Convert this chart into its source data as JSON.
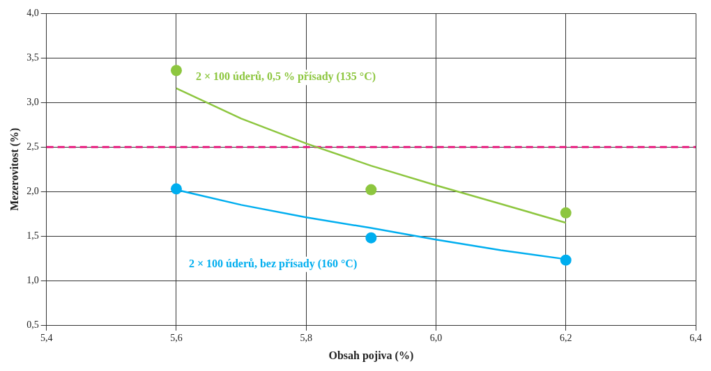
{
  "chart_data": {
    "type": "scatter",
    "xlabel": "Obsah pojiva (%)",
    "ylabel": "Mezerovitost (%)",
    "xlim": [
      5.4,
      6.4
    ],
    "xticks": [
      {
        "value": 5.4,
        "label": "5,4"
      },
      {
        "value": 5.6,
        "label": "5,6"
      },
      {
        "value": 5.8,
        "label": "5,8"
      },
      {
        "value": 6.0,
        "label": "6,0"
      },
      {
        "value": 6.2,
        "label": "6,2"
      },
      {
        "value": 6.4,
        "label": "6,4"
      }
    ],
    "ylim": [
      0.5,
      4.0
    ],
    "yticks": [
      {
        "value": 0.5,
        "label": "0,5"
      },
      {
        "value": 1.0,
        "label": "1,0"
      },
      {
        "value": 1.5,
        "label": "1,5"
      },
      {
        "value": 2.0,
        "label": "2,0"
      },
      {
        "value": 2.5,
        "label": "2,5"
      },
      {
        "value": 3.0,
        "label": "3,0"
      },
      {
        "value": 3.5,
        "label": "3,5"
      },
      {
        "value": 4.0,
        "label": "4,0"
      }
    ],
    "grid": true,
    "legend": false,
    "marker": "circle",
    "series": [
      {
        "name": "2 × 100 úderů, 0,5 % přísady (135 °C)",
        "color": "#8dc63f",
        "x": [
          5.6,
          5.9,
          6.2
        ],
        "values": [
          3.36,
          2.02,
          1.76
        ]
      },
      {
        "name": "2 × 100 úderů, bez přísady (160 °C)",
        "color": "#00aeef",
        "x": [
          5.6,
          5.9,
          6.2
        ],
        "values": [
          2.03,
          1.48,
          1.23
        ]
      },
      {
        "type": "line",
        "marker": "none",
        "color": "#8dc63f",
        "x": [
          5.6,
          5.7,
          5.8,
          5.9,
          6.0,
          6.1,
          6.2
        ],
        "values": [
          3.16,
          2.82,
          2.54,
          2.29,
          2.07,
          1.86,
          1.65
        ]
      },
      {
        "type": "line",
        "marker": "none",
        "color": "#00aeef",
        "x": [
          5.6,
          5.7,
          5.8,
          5.9,
          6.0,
          6.1,
          6.2
        ],
        "values": [
          2.02,
          1.85,
          1.71,
          1.59,
          1.46,
          1.34,
          1.24
        ]
      }
    ],
    "ref_lines": [
      {
        "axis": "y",
        "value": 2.5,
        "color": "#e6197d",
        "line_style": "dashed"
      }
    ]
  }
}
